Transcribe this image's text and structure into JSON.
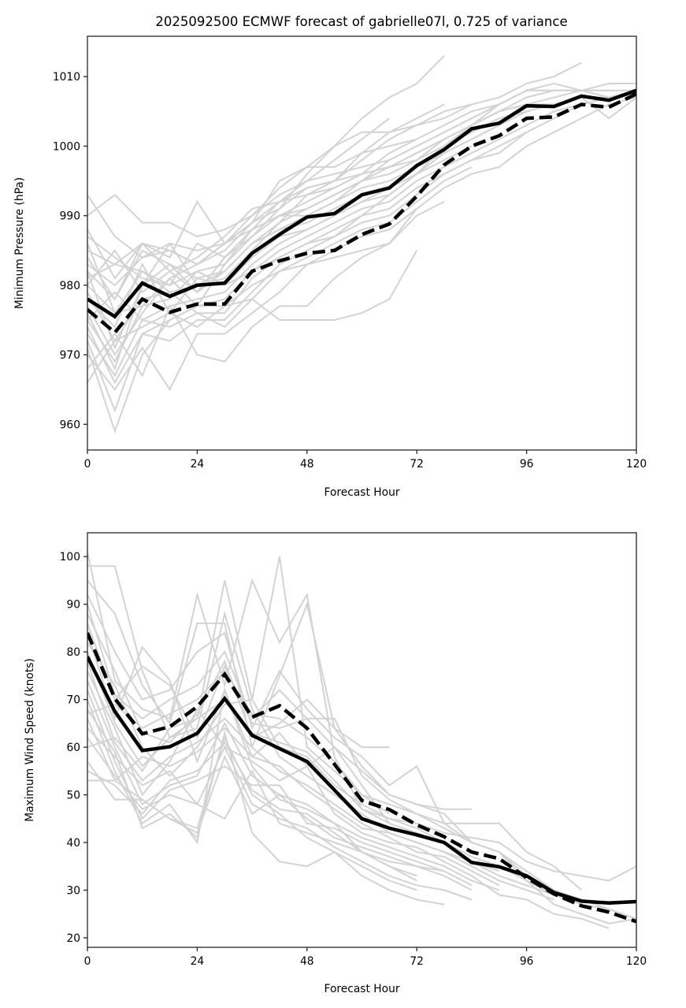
{
  "chart_data": [
    {
      "type": "line",
      "title": "2025092500 ECMWF forecast of gabrielle07l, 0.725 of variance",
      "xlabel": "Forecast Hour",
      "ylabel": "Minimum Pressure (hPa)",
      "xlim": [
        0,
        120
      ],
      "ylim": [
        956.3,
        1015.8
      ],
      "xticks": [
        0,
        24,
        48,
        72,
        96,
        120
      ],
      "yticks": [
        960,
        970,
        980,
        990,
        1000,
        1010
      ],
      "grid": false,
      "x": [
        0,
        6,
        12,
        18,
        24,
        30,
        36,
        42,
        48,
        54,
        60,
        66,
        72,
        78,
        84,
        90,
        96,
        102,
        108,
        114,
        120
      ],
      "series": [
        {
          "name": "mean-solid",
          "style": "solid",
          "color": "#000000",
          "values": [
            978,
            975.5,
            980.3,
            978.4,
            980,
            980.3,
            984.6,
            987.3,
            989.8,
            990.3,
            993,
            994,
            997.2,
            999.5,
            1002.5,
            1003.3,
            1005.8,
            1005.7,
            1007.2,
            1006.6,
            1008
          ]
        },
        {
          "name": "mean-dashed",
          "style": "dashed",
          "color": "#000000",
          "values": [
            976.5,
            973.2,
            978,
            976.1,
            977.3,
            977.3,
            982,
            983.5,
            984.6,
            985,
            987.3,
            988.8,
            992.8,
            997.3,
            1000,
            1001.5,
            1004,
            1004.2,
            1006,
            1005.6,
            1007.5
          ]
        }
      ],
      "ensemble_color": "#d3d3d3",
      "ensemble_members": [
        [
          993,
          987,
          984,
          986,
          985,
          986,
          990,
          994,
          997,
          1000,
          1004,
          1007,
          1009,
          1013
        ],
        [
          990,
          993,
          989,
          989,
          987,
          988,
          990,
          993,
          995,
          998,
          1001,
          1004
        ],
        [
          985,
          983,
          986,
          985,
          983,
          986,
          989,
          991,
          996,
          1000,
          1002,
          1002,
          1003,
          1005,
          1006,
          1007,
          1009,
          1010,
          1012
        ],
        [
          988,
          981,
          986,
          984,
          992,
          986,
          989,
          995,
          997,
          997,
          999,
          1000,
          1001,
          1003,
          1005,
          1006,
          1008,
          1008,
          1008,
          1009,
          1009
        ],
        [
          983,
          980,
          984,
          985,
          983,
          986,
          988,
          992,
          994,
          995,
          996,
          997,
          999,
          1001,
          1003,
          1005,
          1007,
          1008,
          1008,
          1008,
          1008
        ],
        [
          982,
          978,
          986,
          982,
          984,
          987,
          991,
          992,
          995,
          996,
          997,
          998,
          1000,
          1002,
          1004,
          1006,
          1008,
          1009,
          1008,
          1008
        ],
        [
          980,
          976,
          982,
          980,
          982,
          983,
          988,
          990,
          992,
          994,
          996,
          997,
          998,
          1000,
          1003,
          1005,
          1006,
          1007,
          1008,
          1007,
          1008
        ],
        [
          979,
          972,
          978,
          979,
          980,
          981,
          985,
          989,
          991,
          993,
          995,
          996,
          998,
          1001,
          1003,
          1005,
          1006,
          1006,
          1007,
          1004,
          1007
        ],
        [
          977,
          970,
          976,
          981,
          977,
          983,
          987,
          990,
          990,
          992,
          994,
          995,
          997,
          1000,
          1002,
          1004,
          1005,
          1006,
          1007,
          1007,
          1008
        ],
        [
          976,
          968,
          980,
          983,
          979,
          982,
          986,
          988,
          989,
          991,
          993,
          994,
          996,
          999,
          1001,
          1003,
          1005
        ],
        [
          975,
          969,
          977,
          978,
          982,
          980,
          984,
          987,
          988,
          990,
          992,
          993,
          996,
          998,
          1000
        ],
        [
          974,
          966,
          973,
          975,
          977,
          978,
          982,
          985,
          987,
          989,
          991,
          992,
          995,
          997,
          999,
          1001,
          1003,
          1005,
          1006
        ],
        [
          973,
          967,
          975,
          974,
          976,
          976,
          981,
          984,
          986,
          988,
          990,
          991,
          994,
          996,
          998,
          999,
          1002,
          1004,
          1006,
          1007,
          1008
        ],
        [
          972,
          962,
          973,
          972,
          975,
          975,
          979,
          983,
          985,
          987,
          989,
          990,
          993,
          996,
          998,
          1000,
          1002
        ],
        [
          971,
          959,
          970,
          975,
          977,
          977,
          978,
          982,
          984,
          986,
          988,
          989,
          992,
          995,
          997
        ],
        [
          970,
          965,
          971,
          965,
          973,
          973,
          976,
          979,
          983,
          985,
          987,
          988,
          991,
          994,
          996,
          997,
          1000,
          1002,
          1004,
          1006,
          1007
        ],
        [
          968,
          973,
          967,
          977,
          970,
          969,
          974,
          977,
          977,
          981,
          984,
          986,
          990,
          992
        ],
        [
          966,
          972,
          974,
          976,
          974,
          977,
          980,
          982,
          983,
          984,
          985,
          986,
          991
        ],
        [
          981,
          983,
          982,
          979,
          976,
          974,
          978,
          975,
          975,
          975,
          976,
          978,
          985
        ],
        [
          984,
          978,
          985,
          983,
          981,
          980,
          982,
          984,
          986,
          987,
          990,
          993,
          996,
          1000,
          1003,
          1006
        ],
        [
          987,
          984,
          981,
          980,
          986,
          984,
          987,
          991,
          994,
          995,
          998,
          1001,
          1003,
          1004,
          1006
        ],
        [
          978,
          974,
          983,
          976,
          981,
          982,
          986,
          989,
          993,
          995,
          999,
          1002,
          1004,
          1006
        ],
        [
          980,
          985,
          979,
          982,
          979,
          984,
          988,
          990,
          991,
          993,
          995,
          998,
          1000,
          1002,
          1004,
          1006,
          1008
        ],
        [
          975,
          979,
          975,
          977,
          978,
          979,
          983,
          986,
          988,
          990,
          992,
          994,
          997,
          999,
          1001,
          1003
        ],
        [
          982,
          971,
          980,
          986,
          980,
          982,
          986,
          988,
          990,
          992,
          995,
          997,
          999,
          1001,
          1003,
          1005,
          1006
        ],
        [
          986,
          976,
          977,
          981,
          983,
          985,
          989,
          992,
          993,
          994,
          996,
          999,
          1001
        ]
      ]
    },
    {
      "type": "line",
      "title": "",
      "xlabel": "Forecast Hour",
      "ylabel": "Maximum Wind Speed (knots)",
      "xlim": [
        0,
        120
      ],
      "ylim": [
        18,
        105
      ],
      "xticks": [
        0,
        24,
        48,
        72,
        96,
        120
      ],
      "yticks": [
        20,
        30,
        40,
        50,
        60,
        70,
        80,
        90,
        100
      ],
      "grid": false,
      "x": [
        0,
        6,
        12,
        18,
        24,
        30,
        36,
        42,
        48,
        54,
        60,
        66,
        72,
        78,
        84,
        90,
        96,
        102,
        108,
        114,
        120
      ],
      "series": [
        {
          "name": "mean-solid",
          "style": "solid",
          "color": "#000000",
          "values": [
            79,
            67.5,
            59.3,
            60.1,
            62.9,
            70.2,
            62.5,
            59.7,
            57,
            51,
            45,
            43,
            41.6,
            40,
            35.8,
            34.9,
            33,
            29.5,
            27.7,
            27.3,
            27.6
          ]
        },
        {
          "name": "mean-dashed",
          "style": "dashed",
          "color": "#000000",
          "values": [
            84,
            70.2,
            62.8,
            64.3,
            68.5,
            75.3,
            66.3,
            68.7,
            64,
            56.4,
            48.8,
            46.9,
            43.7,
            41.2,
            38,
            36.6,
            32.6,
            29.2,
            26.7,
            25.4,
            23.4
          ]
        }
      ],
      "ensemble_color": "#d3d3d3",
      "ensemble_members": [
        [
          101,
          74,
          68,
          66,
          92,
          73,
          95,
          82,
          92,
          58,
          47,
          45,
          44,
          42,
          41,
          40,
          36,
          34,
          33,
          32,
          35
        ],
        [
          98,
          98,
          76,
          62,
          66,
          95,
          70,
          100,
          60,
          55,
          50,
          48,
          46,
          44,
          44,
          44,
          38,
          35,
          30
        ],
        [
          95,
          88,
          73,
          65,
          86,
          86,
          60,
          75,
          90,
          64,
          56,
          50,
          48,
          46,
          40,
          38,
          34,
          30
        ],
        [
          92,
          80,
          70,
          72,
          80,
          84,
          64,
          76,
          68,
          62,
          58,
          52,
          56,
          44,
          40,
          38,
          32,
          27,
          25,
          23,
          24
        ],
        [
          90,
          71,
          66,
          70,
          73,
          80,
          66,
          72,
          66,
          60,
          55,
          50,
          48,
          47,
          47
        ],
        [
          88,
          76,
          63,
          61,
          67,
          78,
          62,
          65,
          70,
          64,
          60,
          60
        ],
        [
          86,
          70,
          77,
          73,
          62,
          77,
          65,
          64,
          66,
          66,
          54,
          49,
          46,
          43,
          40,
          38,
          33,
          30,
          28,
          26,
          24
        ],
        [
          84,
          66,
          81,
          74,
          57,
          72,
          58,
          63,
          56,
          60,
          52,
          44,
          42,
          40,
          36,
          34
        ],
        [
          82,
          73,
          60,
          54,
          60,
          69,
          70,
          60,
          58,
          52,
          48,
          45,
          43,
          40,
          37,
          35,
          32,
          29,
          27,
          26
        ],
        [
          80,
          65,
          56,
          62,
          64,
          88,
          68,
          58,
          54,
          50,
          46,
          42,
          40,
          38,
          35,
          32,
          30,
          28
        ],
        [
          78,
          61,
          53,
          58,
          61,
          66,
          60,
          55,
          52,
          48,
          44,
          41,
          38,
          37,
          34,
          31
        ],
        [
          76,
          64,
          50,
          57,
          68,
          60,
          57,
          53,
          56,
          46,
          42,
          40,
          39,
          36,
          33,
          29,
          28,
          25,
          24,
          22
        ],
        [
          74,
          60,
          48,
          52,
          54,
          65,
          54,
          50,
          48,
          44,
          41,
          39,
          37,
          35,
          32,
          30
        ],
        [
          72,
          57,
          45,
          51,
          53,
          56,
          52,
          52,
          44,
          43,
          40,
          38,
          36,
          34,
          31
        ],
        [
          70,
          55,
          44,
          48,
          40,
          72,
          56,
          49,
          47,
          44,
          38,
          35,
          33
        ],
        [
          68,
          59,
          43,
          46,
          41,
          63,
          42,
          36,
          35,
          38,
          35,
          32,
          30
        ],
        [
          66,
          53,
          49,
          45,
          43,
          62,
          50,
          46,
          41,
          38,
          33,
          30,
          28,
          27
        ],
        [
          64,
          58,
          52,
          55,
          48,
          45,
          55,
          44,
          42,
          40,
          38,
          35,
          32
        ],
        [
          62,
          54,
          47,
          50,
          48,
          60,
          48,
          45,
          43,
          39,
          36,
          33,
          31,
          30,
          28
        ],
        [
          57,
          49,
          49,
          45,
          42,
          58,
          46,
          50,
          45,
          41,
          39,
          37,
          35,
          33,
          30
        ],
        [
          55,
          52,
          46,
          53,
          55,
          61,
          51,
          47,
          46,
          42,
          38,
          36,
          35,
          34
        ],
        [
          53,
          53,
          58,
          56,
          59,
          64,
          58,
          56,
          51,
          47,
          43,
          42,
          40,
          38,
          36,
          33,
          31,
          29,
          28
        ],
        [
          60,
          62,
          55,
          64,
          66,
          70,
          63,
          61,
          59,
          53,
          47,
          44,
          42
        ],
        [
          67,
          69,
          64,
          67,
          70,
          76,
          67,
          66,
          62,
          57,
          50,
          46
        ]
      ]
    }
  ]
}
